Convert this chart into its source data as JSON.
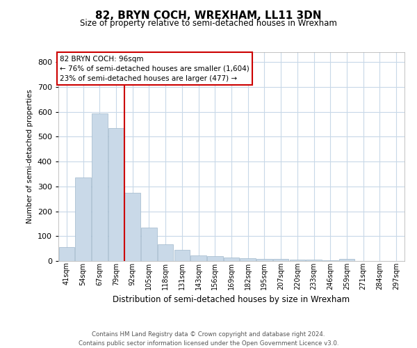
{
  "title": "82, BRYN COCH, WREXHAM, LL11 3DN",
  "subtitle": "Size of property relative to semi-detached houses in Wrexham",
  "xlabel": "Distribution of semi-detached houses by size in Wrexham",
  "ylabel": "Number of semi-detached properties",
  "categories": [
    "41sqm",
    "54sqm",
    "67sqm",
    "79sqm",
    "92sqm",
    "105sqm",
    "118sqm",
    "131sqm",
    "143sqm",
    "156sqm",
    "169sqm",
    "182sqm",
    "195sqm",
    "207sqm",
    "220sqm",
    "233sqm",
    "246sqm",
    "259sqm",
    "271sqm",
    "284sqm",
    "297sqm"
  ],
  "values": [
    57,
    335,
    595,
    535,
    275,
    135,
    67,
    45,
    23,
    20,
    15,
    10,
    8,
    8,
    6,
    5,
    3,
    8,
    0,
    0,
    0
  ],
  "bar_color": "#c9d9e8",
  "bar_edge_color": "#a0b8cc",
  "grid_color": "#c8d8e8",
  "vline_x": 3.5,
  "vline_color": "#cc0000",
  "annotation_text": "82 BRYN COCH: 96sqm\n← 76% of semi-detached houses are smaller (1,604)\n23% of semi-detached houses are larger (477) →",
  "annotation_box_color": "#ffffff",
  "annotation_box_edge": "#cc0000",
  "footer": "Contains HM Land Registry data © Crown copyright and database right 2024.\nContains public sector information licensed under the Open Government Licence v3.0.",
  "ylim": [
    0,
    840
  ],
  "yticks": [
    0,
    100,
    200,
    300,
    400,
    500,
    600,
    700,
    800
  ]
}
